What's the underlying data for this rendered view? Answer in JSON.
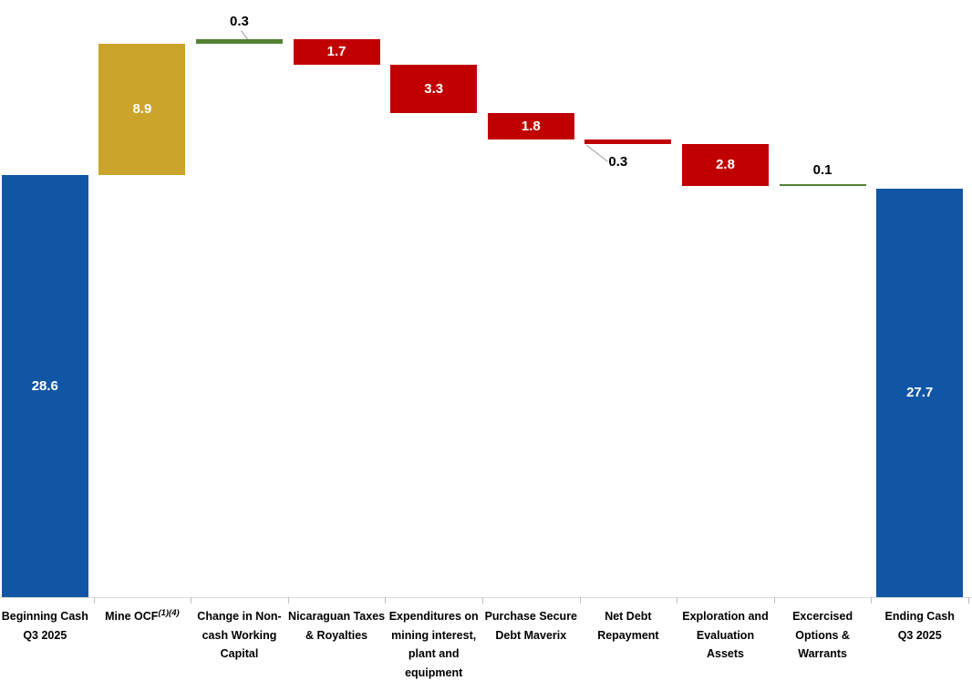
{
  "chart_data": {
    "type": "bar",
    "subtype": "waterfall",
    "title": "",
    "xlabel": "",
    "ylabel": "",
    "ylim": [
      0,
      40
    ],
    "grid": false,
    "legend": false,
    "axis_baseline_visible": true,
    "categories": [
      "Beginning Cash Q3 2025",
      "Mine OCF (1)(4)",
      "Change in Non-cash Working Capital",
      "Nicaraguan Taxes & Royalties",
      "Expenditures on mining interest, plant and equipment",
      "Purchase Secure Debt Maverix",
      "Net Debt Repayment",
      "Exploration and Evaluation Assets",
      "Excercised Options & Warrants",
      "Ending Cash Q3 2025"
    ],
    "cumulative_levels": [
      28.6,
      37.5,
      37.8,
      36.1,
      32.8,
      31.0,
      30.7,
      27.9,
      28.0,
      27.7
    ],
    "steps": [
      {
        "category_display": "Beginning Cash\nQ3 2025",
        "value": 28.6,
        "value_label": "28.6",
        "kind": "total",
        "color_key": "total",
        "value_pos": "inside"
      },
      {
        "category_display": "Mine OCF",
        "category_sup": "(1)(4)",
        "value": 8.9,
        "value_label": "8.9",
        "kind": "increase",
        "color_key": "mine_ocf",
        "value_pos": "inside"
      },
      {
        "category_display": "Change in Non-\ncash Working\nCapital",
        "value": 0.3,
        "value_label": "0.3",
        "kind": "increase",
        "color_key": "increase",
        "value_pos": "above-leader"
      },
      {
        "category_display": "Nicaraguan Taxes\n& Royalties",
        "value": 1.7,
        "value_label": "1.7",
        "kind": "decrease",
        "color_key": "decrease",
        "value_pos": "inside"
      },
      {
        "category_display": "Expenditures on\nmining interest,\nplant and\nequipment",
        "value": 3.3,
        "value_label": "3.3",
        "kind": "decrease",
        "color_key": "decrease",
        "value_pos": "inside"
      },
      {
        "category_display": "Purchase Secure\nDebt Maverix",
        "value": 1.8,
        "value_label": "1.8",
        "kind": "decrease",
        "color_key": "decrease",
        "value_pos": "inside"
      },
      {
        "category_display": "Net Debt\nRepayment",
        "value": 0.3,
        "value_label": "0.3",
        "kind": "decrease",
        "color_key": "decrease",
        "value_pos": "below-leader"
      },
      {
        "category_display": "Exploration and\nEvaluation Assets",
        "value": 2.8,
        "value_label": "2.8",
        "kind": "decrease",
        "color_key": "decrease",
        "value_pos": "inside"
      },
      {
        "category_display": "Excercised\nOptions &\nWarrants",
        "value": 0.1,
        "value_label": "0.1",
        "kind": "increase",
        "color_key": "increase",
        "value_pos": "above"
      },
      {
        "category_display": "Ending Cash\nQ3 2025",
        "value": 27.7,
        "value_label": "27.7",
        "kind": "total",
        "color_key": "total",
        "value_pos": "inside"
      }
    ],
    "colors": {
      "total": "#1056A4",
      "mine_ocf": "#CBA42B",
      "increase": "#538135",
      "decrease": "#C00000",
      "axis_line": "#D9D9D9",
      "tick": "#BFBFBF",
      "leader": "#999999",
      "value_inside_text": "#FFFFFF",
      "value_outside_text": "#000000",
      "category_text": "#000000",
      "background": "#FFFFFF"
    }
  }
}
